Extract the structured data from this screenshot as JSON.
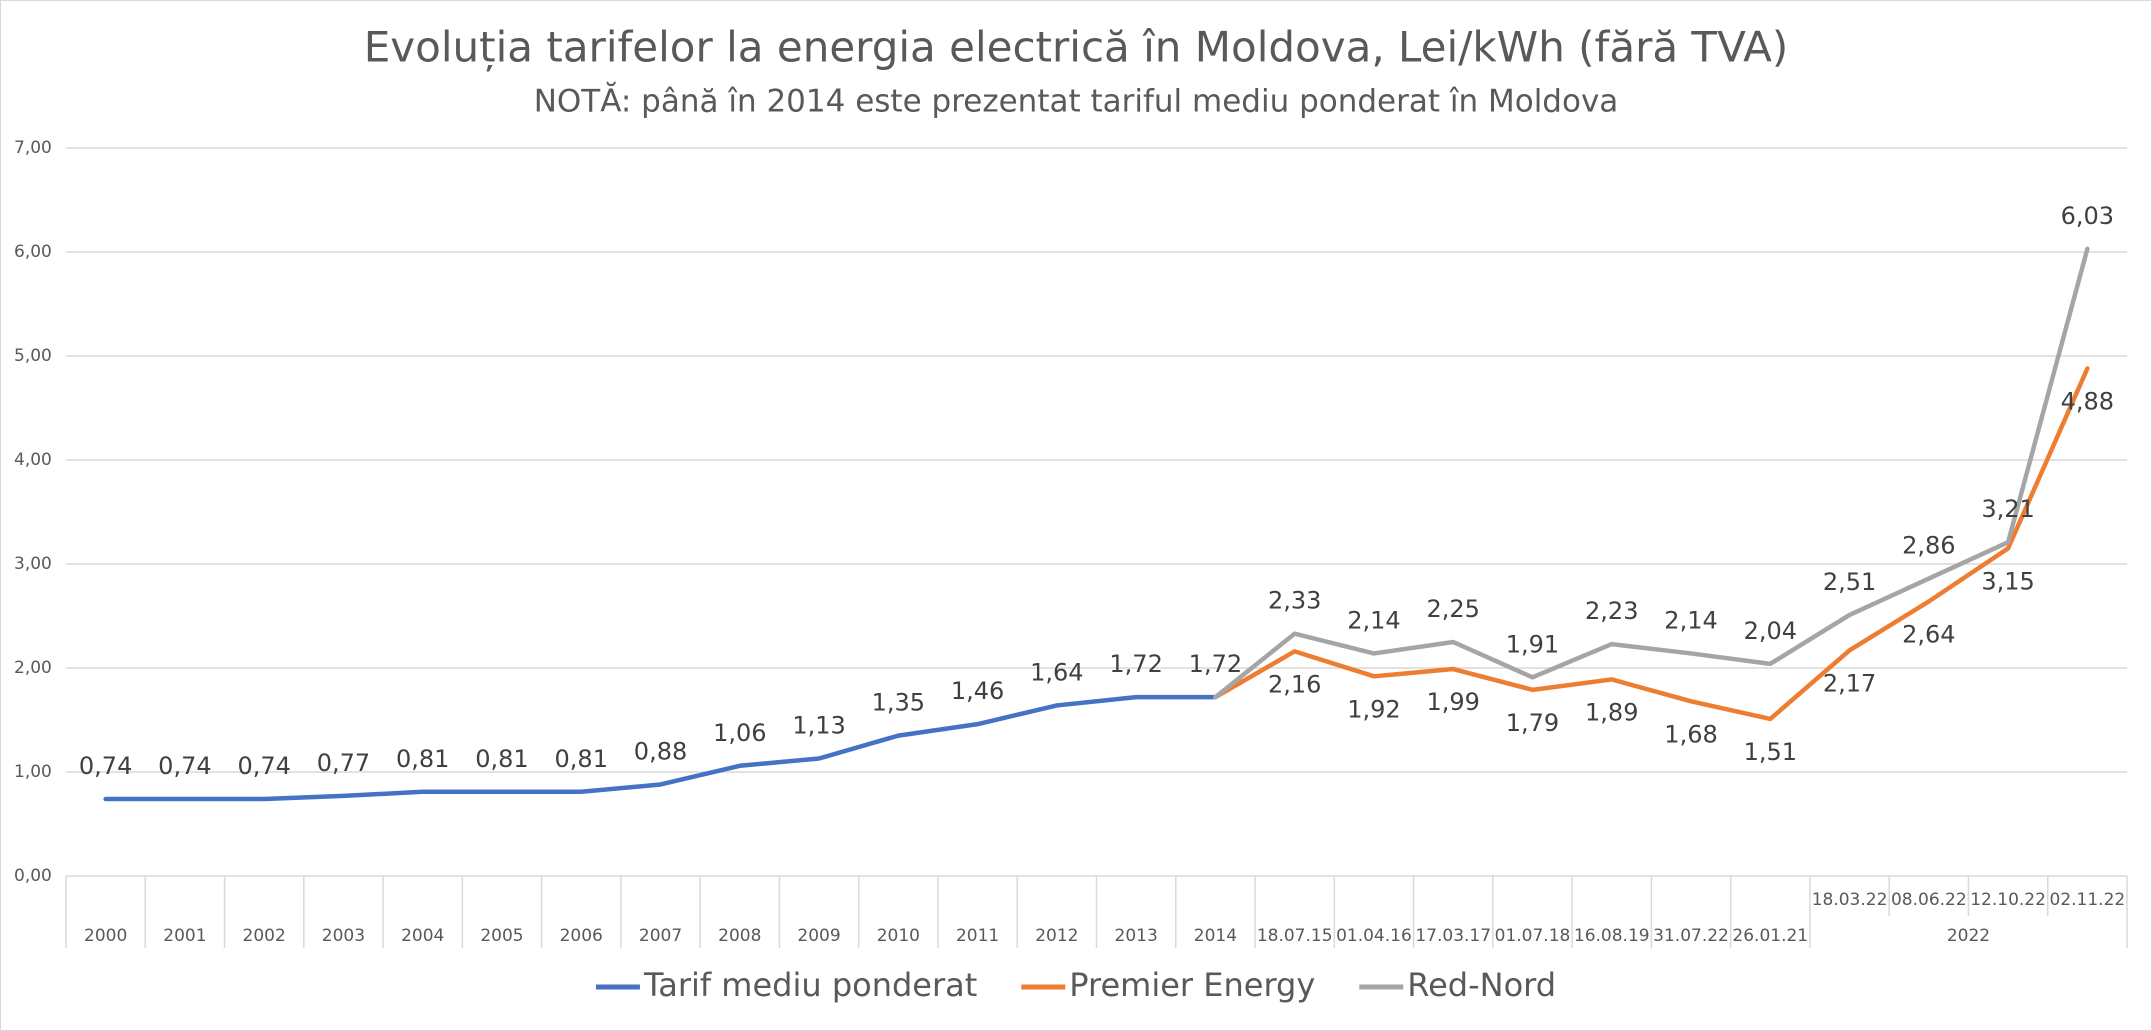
{
  "chart_data": {
    "type": "line",
    "title": "Evoluția tarifelor la energia electrică în Moldova, Lei/kWh (fără TVA)",
    "subtitle": "NOTĂ: până în 2014 este prezentat tariful mediu ponderat în Moldova",
    "categories": [
      "2000",
      "2001",
      "2002",
      "2003",
      "2004",
      "2005",
      "2006",
      "2007",
      "2008",
      "2009",
      "2010",
      "2011",
      "2012",
      "2013",
      "2014",
      "18.07.15",
      "01.04.16",
      "17.03.17",
      "01.07.18",
      "16.08.19",
      "31.07.22",
      "26.01.21",
      "18.03.22",
      "08.06.22",
      "12.10.22",
      "02.11.22"
    ],
    "category_groups": [
      {
        "label": "2022",
        "from": "18.03.22",
        "to": "02.11.22"
      }
    ],
    "series": [
      {
        "name": "Tarif mediu ponderat",
        "color": "#4472c4",
        "label_position": "above",
        "values": [
          0.74,
          0.74,
          0.74,
          0.77,
          0.81,
          0.81,
          0.81,
          0.88,
          1.06,
          1.13,
          1.35,
          1.46,
          1.64,
          1.72,
          1.72,
          null,
          null,
          null,
          null,
          null,
          null,
          null,
          null,
          null,
          null,
          null
        ],
        "value_labels": [
          "0,74",
          "0,74",
          "0,74",
          "0,77",
          "0,81",
          "0,81",
          "0,81",
          "0,88",
          "1,06",
          "1,13",
          "1,35",
          "1,46",
          "1,64",
          "1,72",
          "1,72",
          null,
          null,
          null,
          null,
          null,
          null,
          null,
          null,
          null,
          null,
          null
        ]
      },
      {
        "name": "Premier Energy",
        "color": "#ed7d31",
        "label_position": "below",
        "values": [
          null,
          null,
          null,
          null,
          null,
          null,
          null,
          null,
          null,
          null,
          null,
          null,
          null,
          null,
          1.72,
          2.16,
          1.92,
          1.99,
          1.79,
          1.89,
          1.68,
          1.51,
          2.17,
          2.64,
          3.15,
          4.88
        ],
        "value_labels": [
          null,
          null,
          null,
          null,
          null,
          null,
          null,
          null,
          null,
          null,
          null,
          null,
          null,
          null,
          null,
          "2,16",
          "1,92",
          "1,99",
          "1,79",
          "1,89",
          "1,68",
          "1,51",
          "2,17",
          "2,64",
          "3,15",
          "4,88"
        ]
      },
      {
        "name": "Red-Nord",
        "color": "#a5a5a5",
        "label_position": "above",
        "values": [
          null,
          null,
          null,
          null,
          null,
          null,
          null,
          null,
          null,
          null,
          null,
          null,
          null,
          null,
          1.72,
          2.33,
          2.14,
          2.25,
          1.91,
          2.23,
          2.14,
          2.04,
          2.51,
          2.86,
          3.21,
          6.03
        ],
        "value_labels": [
          null,
          null,
          null,
          null,
          null,
          null,
          null,
          null,
          null,
          null,
          null,
          null,
          null,
          null,
          null,
          "2,33",
          "2,14",
          "2,25",
          "1,91",
          "2,23",
          "2,14",
          "2,04",
          "2,51",
          "2,86",
          "3,21",
          "6,03"
        ]
      }
    ],
    "ylim": [
      0,
      7
    ],
    "yticks": [
      {
        "value": 0,
        "label": "0,00"
      },
      {
        "value": 1,
        "label": "1,00"
      },
      {
        "value": 2,
        "label": "2,00"
      },
      {
        "value": 3,
        "label": "3,00"
      },
      {
        "value": 4,
        "label": "4,00"
      },
      {
        "value": 5,
        "label": "5,00"
      },
      {
        "value": 6,
        "label": "6,00"
      },
      {
        "value": 7,
        "label": "7,00"
      }
    ],
    "grid": true,
    "legend": "bottom"
  }
}
